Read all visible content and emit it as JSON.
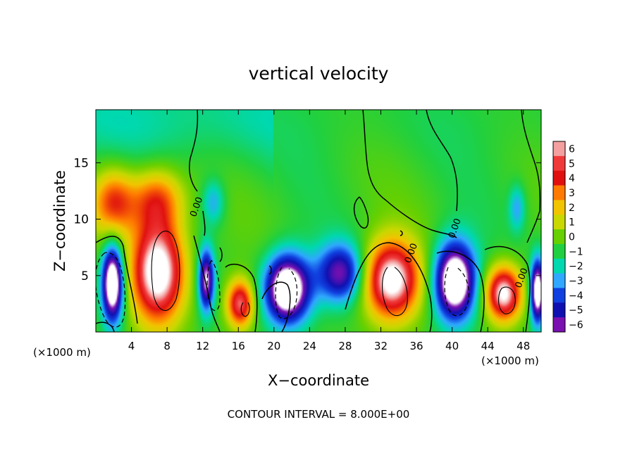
{
  "chart_data": {
    "type": "heatmap",
    "title": "vertical velocity",
    "xlabel": "X−coordinate",
    "ylabel": "Z−coordinate",
    "x_unit_left": "(×1000 m)",
    "x_unit_right": "(×1000 m)",
    "footer": "CONTOUR INTERVAL = 8.000E+00",
    "xlim": [
      0,
      50
    ],
    "ylim": [
      0,
      19.7
    ],
    "x_ticks": [
      "4",
      "8",
      "12",
      "16",
      "20",
      "24",
      "28",
      "32",
      "36",
      "40",
      "44",
      "48"
    ],
    "x_tick_values": [
      4,
      8,
      12,
      16,
      20,
      24,
      28,
      32,
      36,
      40,
      44,
      48
    ],
    "y_ticks": [
      "5",
      "10",
      "15"
    ],
    "y_tick_values": [
      5,
      10,
      15
    ],
    "colorbar": {
      "labels": [
        "6",
        "5",
        "4",
        "3",
        "2",
        "1",
        "0",
        "−1",
        "−2",
        "−3",
        "−4",
        "−5",
        "−6"
      ],
      "levels": [
        6,
        5,
        4,
        3,
        2,
        1,
        0,
        -1,
        -2,
        -3,
        -4,
        -5,
        -6
      ],
      "colors": [
        "#f4a0a0",
        "#f03a3a",
        "#e01010",
        "#ff7a00",
        "#f2c400",
        "#c8d800",
        "#66d000",
        "#20d040",
        "#00d8b0",
        "#30a8ff",
        "#1040e0",
        "#1010b0",
        "#7a10b0"
      ]
    },
    "contour_labels": [
      {
        "text": "0.00",
        "x": 11.6,
        "y": 11.0
      },
      {
        "text": "0.00",
        "x": 40.6,
        "y": 9.1
      },
      {
        "text": "0.00",
        "x": 35.7,
        "y": 6.9
      },
      {
        "text": "0.00",
        "x": 48.1,
        "y": 4.7
      }
    ],
    "features": [
      {
        "kind": "updraft",
        "x": 7.0,
        "z": 5.4,
        "rx": 2.9,
        "rz": 4.5,
        "peak": 9
      },
      {
        "kind": "updraft_upper",
        "x": 2.0,
        "z": 11.5,
        "rx": 2.4,
        "rz": 3.0,
        "peak": 4.6
      },
      {
        "kind": "updraft_upper",
        "x": 6.8,
        "z": 11.8,
        "rx": 3.0,
        "rz": 2.8,
        "peak": 4.3
      },
      {
        "kind": "downdraft",
        "x": 1.9,
        "z": 4.3,
        "rx": 1.2,
        "rz": 3.4,
        "peak": -9
      },
      {
        "kind": "downdraft",
        "x": 12.4,
        "z": 4.6,
        "rx": 0.9,
        "rz": 2.8,
        "peak": -6.5
      },
      {
        "kind": "downdraft",
        "x": 13.2,
        "z": 11.5,
        "rx": 1.3,
        "rz": 2.0,
        "peak": -2.4
      },
      {
        "kind": "updraft",
        "x": 16.2,
        "z": 2.5,
        "rx": 1.5,
        "rz": 2.1,
        "peak": 6.5
      },
      {
        "kind": "downdraft",
        "x": 21.5,
        "z": 3.8,
        "rx": 2.5,
        "rz": 3.0,
        "peak": -9
      },
      {
        "kind": "downdraft",
        "x": 27.5,
        "z": 5.2,
        "rx": 2.7,
        "rz": 2.6,
        "peak": -5.5
      },
      {
        "kind": "updraft",
        "x": 33.2,
        "z": 4.6,
        "rx": 3.1,
        "rz": 3.4,
        "peak": 8.5
      },
      {
        "kind": "downdraft",
        "x": 40.3,
        "z": 4.5,
        "rx": 2.3,
        "rz": 3.4,
        "peak": -9
      },
      {
        "kind": "updraft",
        "x": 45.8,
        "z": 3.4,
        "rx": 2.0,
        "rz": 2.4,
        "peak": 8
      },
      {
        "kind": "downdraft",
        "x": 49.6,
        "z": 3.6,
        "rx": 0.8,
        "rz": 2.8,
        "peak": -8
      },
      {
        "kind": "downdraft",
        "x": 47.3,
        "z": 11.0,
        "rx": 0.9,
        "rz": 2.0,
        "peak": -2.3
      }
    ]
  }
}
